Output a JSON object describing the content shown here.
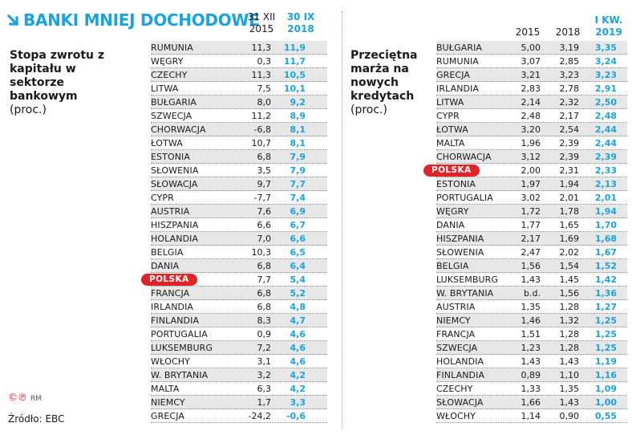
{
  "title": "BANKI MNIEJ DOCHODOWE",
  "left_block": {
    "label_bold": "Stopa zwrotu z kapitału w sektorze bankowym",
    "label_unit": "(proc.)"
  },
  "right_block": {
    "label_bold": "Przeciętna marża na nowych kredytach",
    "label_unit": "(proc.)"
  },
  "footer": {
    "copyright_marks": "©℗",
    "copyright_initials": "RM",
    "source": "Źródło: EBC"
  },
  "highlight_country": "POLSKA",
  "colors": {
    "accent": "#1aa3df",
    "highlight": "#e2232a",
    "shade": "#e7e7e7"
  },
  "chart_data": [
    {
      "type": "table",
      "columns": [
        "31 XII 2015",
        "30 IX 2018"
      ],
      "categories": [
        "RUMUNIA",
        "WĘGRY",
        "CZECHY",
        "LITWA",
        "BUŁGARIA",
        "SZWECJA",
        "CHORWACJA",
        "ŁOTWA",
        "ESTONIA",
        "SŁOWENIA",
        "SŁOWACJA",
        "CYPR",
        "AUSTRIA",
        "HISZPANIA",
        "HOLANDIA",
        "BELGIA",
        "DANIA",
        "POLSKA",
        "FRANCJA",
        "IRLANDIA",
        "FINLANDIA",
        "PORTUGALIA",
        "LUKSEMBURG",
        "WŁOCHY",
        "W. BRYTANIA",
        "MALTA",
        "NIEMCY",
        "GRECJA"
      ],
      "series": [
        {
          "name": "31 XII 2015",
          "values": [
            "11,3",
            "0,3",
            "11,3",
            "7,5",
            "8,0",
            "11,2",
            "-6,8",
            "10,7",
            "6,8",
            "3,5",
            "9,7",
            "-7,7",
            "7,6",
            "6,6",
            "7,0",
            "10,3",
            "6,8",
            "7,7",
            "6,8",
            "6,8",
            "8,3",
            "0,9",
            "7,2",
            "3,1",
            "3,2",
            "6,3",
            "1,7",
            "-24,2"
          ]
        },
        {
          "name": "30 IX 2018",
          "values": [
            "11,9",
            "11,7",
            "10,5",
            "10,1",
            "9,2",
            "8,9",
            "8,1",
            "8,1",
            "7,9",
            "7,9",
            "7,7",
            "7,4",
            "6,9",
            "6,7",
            "6,6",
            "6,5",
            "6,4",
            "5,4",
            "5,2",
            "4,8",
            "4,7",
            "4,6",
            "4,6",
            "4,6",
            "4,2",
            "4,2",
            "3,3",
            "-0,6"
          ]
        }
      ]
    },
    {
      "type": "table",
      "columns": [
        "2015",
        "2018",
        "I KW. 2019"
      ],
      "categories": [
        "BUŁGARIA",
        "RUMUNIA",
        "GRECJA",
        "IRLANDIA",
        "LITWA",
        "CYPR",
        "ŁOTWA",
        "MALTA",
        "CHORWACJA",
        "POLSKA",
        "ESTONIA",
        "PORTUGALIA",
        "WĘGRY",
        "DANIA",
        "HISZPANIA",
        "SŁOWENIA",
        "BELGIA",
        "LUKSEMBURG",
        "W. BRYTANIA",
        "AUSTRIA",
        "NIEMCY",
        "FRANCJA",
        "SZWECJA",
        "HOLANDIA",
        "FINLANDIA",
        "CZECHY",
        "SŁOWACJA",
        "WŁOCHY"
      ],
      "series": [
        {
          "name": "2015",
          "values": [
            "5,00",
            "3,07",
            "3,21",
            "2,83",
            "2,14",
            "2,48",
            "3,20",
            "1,96",
            "3,12",
            "2,00",
            "1,97",
            "3,02",
            "1,72",
            "1,77",
            "2,17",
            "2,47",
            "1,56",
            "1,43",
            "b.d.",
            "1,35",
            "1,46",
            "1,51",
            "1,23",
            "1,43",
            "0,89",
            "1,33",
            "1,66",
            "1,14"
          ]
        },
        {
          "name": "2018",
          "values": [
            "3,19",
            "2,85",
            "3,23",
            "2,78",
            "2,32",
            "2,17",
            "2,54",
            "2,39",
            "2,39",
            "2,31",
            "1,94",
            "2,01",
            "1,78",
            "1,65",
            "1,69",
            "2,02",
            "1,54",
            "1,45",
            "1,56",
            "1,28",
            "1,32",
            "1,28",
            "1,28",
            "1,43",
            "1,10",
            "1,35",
            "1,43",
            "0,90"
          ]
        },
        {
          "name": "I KW. 2019",
          "values": [
            "3,35",
            "3,24",
            "3,23",
            "2,91",
            "2,50",
            "2,48",
            "2,44",
            "2,44",
            "2,39",
            "2,33",
            "2,13",
            "2,01",
            "1,94",
            "1,70",
            "1,68",
            "1,67",
            "1,52",
            "1,42",
            "1,36",
            "1,27",
            "1,25",
            "1,25",
            "1,25",
            "1,19",
            "1,16",
            "1,09",
            "1,00",
            "0,55"
          ]
        }
      ]
    }
  ],
  "left_headers": {
    "col1_line1": "31 XII",
    "col1_line2": "2015",
    "col2_line1": "30 IX",
    "col2_line2": "2018"
  },
  "right_headers": {
    "col1": "2015",
    "col2": "2018",
    "col3_line1": "I KW.",
    "col3_line2": "2019"
  }
}
